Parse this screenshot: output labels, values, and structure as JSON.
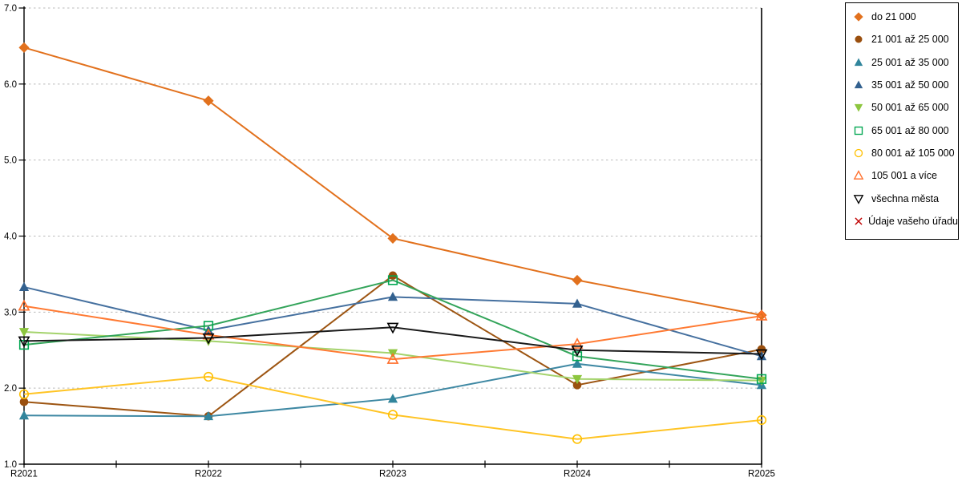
{
  "chart_data": {
    "type": "line",
    "title": "",
    "xlabel": "",
    "ylabel": "",
    "categories": [
      "R2021",
      "R2022",
      "R2023",
      "R2024",
      "R2025"
    ],
    "ylim": [
      1.0,
      7.0
    ],
    "y_ticks": [
      "1.0",
      "2.0",
      "3.0",
      "4.0",
      "5.0",
      "6.0",
      "7.0"
    ],
    "grid": "horizontal-dotted",
    "legend_position": "right-outside",
    "series": [
      {
        "name": "do 21 000",
        "marker": "diamond",
        "filled": true,
        "color": "#E2711D",
        "line_color": "#E2711D",
        "values": [
          6.48,
          5.78,
          3.97,
          3.42,
          2.96
        ]
      },
      {
        "name": "21 001 až 25 000",
        "marker": "circle",
        "filled": true,
        "color": "#9A4F0E",
        "line_color": "#9D5512",
        "values": [
          1.82,
          1.63,
          3.48,
          2.04,
          2.51
        ]
      },
      {
        "name": "25 001 až 35 000",
        "marker": "triangle-up",
        "filled": true,
        "color": "#31859C",
        "line_color": "#3E88A3",
        "values": [
          1.64,
          1.63,
          1.86,
          2.32,
          2.04
        ]
      },
      {
        "name": "35 001 až 50 000",
        "marker": "triangle-up",
        "filled": true,
        "color": "#33618F",
        "line_color": "#45709F",
        "values": [
          3.33,
          2.76,
          3.2,
          3.11,
          2.42
        ]
      },
      {
        "name": "50 001 až 65 000",
        "marker": "triangle-down",
        "filled": true,
        "color": "#8DC63F",
        "line_color": "#A4D36C",
        "values": [
          2.74,
          2.62,
          2.46,
          2.12,
          2.1
        ]
      },
      {
        "name": "65 001 až 80 000",
        "marker": "square",
        "filled": false,
        "color": "#00A651",
        "line_color": "#33A45A",
        "values": [
          2.57,
          2.82,
          3.42,
          2.42,
          2.12
        ]
      },
      {
        "name": "80 001 až 105 000",
        "marker": "circle",
        "filled": false,
        "color": "#FFC000",
        "line_color": "#FFC425",
        "values": [
          1.92,
          2.15,
          1.65,
          1.33,
          1.58
        ]
      },
      {
        "name": "105 001 a více",
        "marker": "triangle-up",
        "filled": false,
        "color": "#FF6D29",
        "line_color": "#FF7A33",
        "values": [
          3.08,
          2.7,
          2.38,
          2.58,
          2.95
        ]
      },
      {
        "name": "všechna města",
        "marker": "triangle-down",
        "filled": false,
        "color": "#000000",
        "line_color": "#1A1A1A",
        "values": [
          2.62,
          2.66,
          2.8,
          2.5,
          2.45
        ]
      },
      {
        "name": "Údaje vašeho úřadu",
        "marker": "x",
        "filled": false,
        "color": "#C00000",
        "line_color": "#C00000",
        "values": []
      }
    ]
  }
}
